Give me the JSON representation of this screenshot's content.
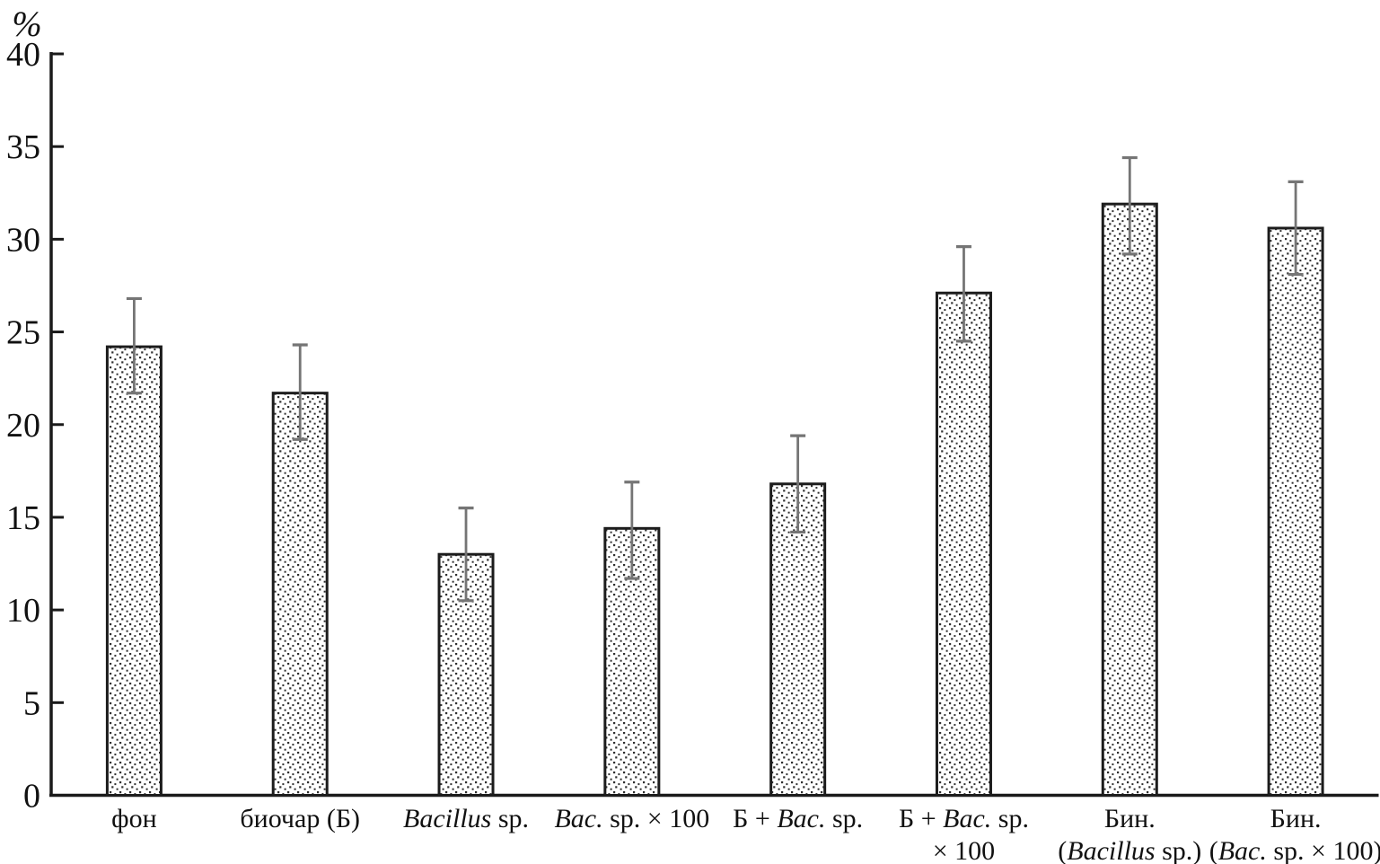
{
  "chart_data": {
    "type": "bar",
    "title": "",
    "xlabel": "",
    "ylabel": "%",
    "ylim": [
      0,
      40
    ],
    "yticks": [
      0,
      5,
      10,
      15,
      20,
      25,
      30,
      35,
      40
    ],
    "grid": false,
    "legend": null,
    "bar_fill_style": "stipple-dots",
    "categories": [
      "фон",
      "биочар (Б)",
      "Bacillus sp.",
      "Bac. sp. × 100",
      "Б + Bac. sp.",
      "Б + Bac. sp. × 100",
      "Бин. (Bacillus sp.)",
      "Бин. (Bac. sp. × 100)"
    ],
    "category_labels": [
      {
        "lines": [
          [
            {
              "text": "фон",
              "italic": false
            }
          ]
        ]
      },
      {
        "lines": [
          [
            {
              "text": "биочар (Б)",
              "italic": false
            }
          ]
        ]
      },
      {
        "lines": [
          [
            {
              "text": "Bacillus",
              "italic": true
            },
            {
              "text": " sp.",
              "italic": false
            }
          ]
        ]
      },
      {
        "lines": [
          [
            {
              "text": "Bac.",
              "italic": true
            },
            {
              "text": " sp. × 100",
              "italic": false
            }
          ]
        ]
      },
      {
        "lines": [
          [
            {
              "text": "Б + ",
              "italic": false
            },
            {
              "text": "Bac.",
              "italic": true
            },
            {
              "text": " sp.",
              "italic": false
            }
          ]
        ]
      },
      {
        "lines": [
          [
            {
              "text": "Б + ",
              "italic": false
            },
            {
              "text": "Bac.",
              "italic": true
            },
            {
              "text": " sp.",
              "italic": false
            }
          ],
          [
            {
              "text": "× 100",
              "italic": false
            }
          ]
        ]
      },
      {
        "lines": [
          [
            {
              "text": "Бин.",
              "italic": false
            }
          ],
          [
            {
              "text": "(",
              "italic": false
            },
            {
              "text": "Bacillus",
              "italic": true
            },
            {
              "text": " sp.)",
              "italic": false
            }
          ]
        ]
      },
      {
        "lines": [
          [
            {
              "text": "Бин.",
              "italic": false
            }
          ],
          [
            {
              "text": "(",
              "italic": false
            },
            {
              "text": "Bac.",
              "italic": true
            },
            {
              "text": " sp. × 100)",
              "italic": false
            }
          ]
        ]
      }
    ],
    "values": [
      24.2,
      21.7,
      13.0,
      14.4,
      16.8,
      27.1,
      31.9,
      30.6
    ],
    "error_upper": [
      26.8,
      24.3,
      15.5,
      16.9,
      19.4,
      29.6,
      34.4,
      33.1
    ],
    "error_lower": [
      21.7,
      19.2,
      10.5,
      11.7,
      14.2,
      24.5,
      29.2,
      28.1
    ],
    "colors": {
      "background": "#ffffff",
      "axis": "#1a1a1a",
      "bar_outline": "#1c1c1c",
      "bar_dot": "#2e2e2e",
      "error_bar": "#757575",
      "text": "#111111"
    }
  }
}
